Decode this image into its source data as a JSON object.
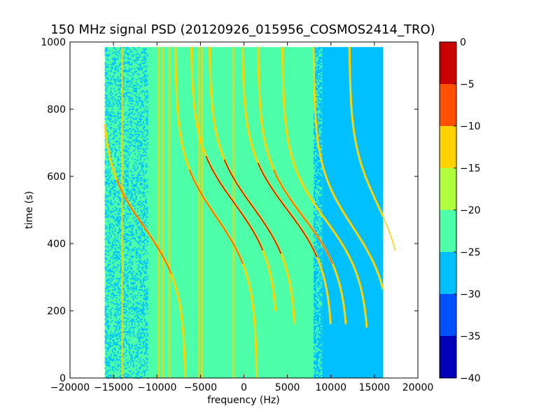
{
  "chart_data": {
    "type": "heatmap",
    "title": "150 MHz signal PSD (20120926_015956_COSMOS2414_TRO)",
    "xlabel": "frequency (Hz)",
    "ylabel": "time (s)",
    "xlim": [
      -20000,
      20000
    ],
    "ylim": [
      0,
      1000
    ],
    "x_ticks": [
      -20000,
      -15000,
      -10000,
      -5000,
      0,
      5000,
      10000,
      15000,
      20000
    ],
    "x_tick_labels": [
      "−20000",
      "−15000",
      "−10000",
      "−5000",
      "0",
      "5000",
      "10000",
      "15000",
      "20000"
    ],
    "y_ticks": [
      0,
      200,
      400,
      600,
      800,
      1000
    ],
    "y_tick_labels": [
      "0",
      "200",
      "400",
      "600",
      "800",
      "1000"
    ],
    "data_extent": {
      "x": [
        -16000,
        16000
      ],
      "y": [
        0,
        985
      ]
    },
    "colorbar": {
      "levels": [
        -40,
        -35,
        -30,
        -25,
        -20,
        -15,
        -10,
        -5,
        0
      ],
      "tick_labels": [
        "−40",
        "−35",
        "−30",
        "−25",
        "−20",
        "−15",
        "−10",
        "−5",
        "0"
      ],
      "colors": [
        "#0000b8",
        "#0050ff",
        "#00c0ff",
        "#4dffa8",
        "#b0ff3c",
        "#ffd200",
        "#ff5000",
        "#c80000"
      ]
    },
    "regions": [
      {
        "x": [
          -16000,
          -11000
        ],
        "level": -25,
        "texture": "mixed"
      },
      {
        "x": [
          -11000,
          8000
        ],
        "level": -25,
        "texture": "smooth"
      },
      {
        "x": [
          8000,
          9000
        ],
        "level": -30,
        "texture": "mixed"
      },
      {
        "x": [
          9000,
          16000
        ],
        "level": -30,
        "texture": "smooth"
      }
    ],
    "vertical_lines": [
      {
        "x": -14000,
        "y": [
          0,
          985
        ],
        "level": -15
      },
      {
        "x": -9800,
        "y": [
          0,
          985
        ],
        "level": -15
      },
      {
        "x": -9300,
        "y": [
          0,
          985
        ],
        "level": -15
      },
      {
        "x": -8600,
        "y": [
          0,
          985
        ],
        "level": -15
      },
      {
        "x": -5200,
        "y": [
          0,
          985
        ],
        "level": -15
      },
      {
        "x": -4800,
        "y": [
          0,
          985
        ],
        "level": -15
      },
      {
        "x": -1200,
        "y": [
          0,
          985
        ],
        "level": -15
      }
    ],
    "series": [
      {
        "x0": -11500,
        "y0": 450,
        "amp": 4800,
        "y_range": [
          0,
          985
        ],
        "peak_level": -10
      },
      {
        "x0": -3200,
        "y0": 480,
        "amp": 4700,
        "y_range": [
          0,
          985
        ],
        "peak_level": -10
      },
      {
        "x0": -1100,
        "y0": 520,
        "amp": 5000,
        "y_range": [
          200,
          985
        ],
        "peak_level": -5
      },
      {
        "x0": 1000,
        "y0": 510,
        "amp": 5000,
        "y_range": [
          160,
          985
        ],
        "peak_level": -5
      },
      {
        "x0": 5000,
        "y0": 500,
        "amp": 5200,
        "y_range": [
          160,
          985
        ],
        "peak_level": -5
      },
      {
        "x0": 6800,
        "y0": 480,
        "amp": 5200,
        "y_range": [
          160,
          985
        ],
        "peak_level": -10
      },
      {
        "x0": 9400,
        "y0": 470,
        "amp": 5000,
        "y_range": [
          150,
          985
        ],
        "peak_level": -15
      },
      {
        "x0": 12500,
        "y0": 450,
        "amp": 4500,
        "y_range": [
          0,
          985
        ],
        "peak_level": -15
      },
      {
        "x0": 15300,
        "y0": 520,
        "amp": 3200,
        "y_range": [
          200,
          985
        ],
        "peak_level": -15
      }
    ]
  }
}
